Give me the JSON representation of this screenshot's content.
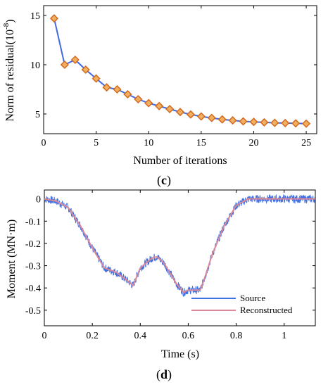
{
  "chart_data": [
    {
      "type": "line",
      "panel_label": "(c)",
      "panel_label_prefix": "(",
      "panel_label_letter": "c",
      "panel_label_suffix": ")",
      "xlabel": "Number of iterations",
      "ylabel": "Norm of residual(10",
      "ylabel_exponent": "-8",
      "ylabel_suffix": ")",
      "xlim": [
        0,
        26
      ],
      "ylim": [
        3,
        16
      ],
      "xticks": [
        0,
        5,
        10,
        15,
        20,
        25
      ],
      "yticks": [
        5,
        10,
        15
      ],
      "line_color": "#4169e1",
      "marker": "diamond",
      "marker_color": "#d2691e",
      "series": [
        {
          "x": [
            1,
            2,
            3,
            4,
            5,
            6,
            7,
            8,
            9,
            10,
            11,
            12,
            13,
            14,
            15,
            16,
            17,
            18,
            19,
            20,
            21,
            22,
            23,
            24,
            25
          ],
          "values": [
            14.7,
            10.0,
            10.5,
            9.5,
            8.6,
            7.7,
            7.5,
            7.0,
            6.5,
            6.1,
            5.8,
            5.5,
            5.2,
            4.95,
            4.75,
            4.6,
            4.45,
            4.35,
            4.25,
            4.2,
            4.15,
            4.1,
            4.08,
            4.05,
            4.02
          ]
        }
      ]
    },
    {
      "type": "line",
      "panel_label": "(d)",
      "panel_label_prefix": "(",
      "panel_label_letter": "d",
      "panel_label_suffix": ")",
      "xlabel": "Time (s)",
      "ylabel": "Moment  (MN·m)",
      "xlim": [
        0,
        1.13
      ],
      "ylim": [
        -0.57,
        0.04
      ],
      "xticks": [
        0,
        0.2,
        0.4,
        0.6,
        0.8,
        1
      ],
      "yticks": [
        0,
        -0.1,
        -0.2,
        -0.3,
        -0.4,
        -0.5
      ],
      "legend_position": "lower-right",
      "series": [
        {
          "name": "Source",
          "color": "#3f6fe0",
          "noise_amplitude": 0.018,
          "x": [
            0,
            0.05,
            0.1,
            0.15,
            0.2,
            0.25,
            0.3,
            0.35,
            0.37,
            0.4,
            0.45,
            0.47,
            0.5,
            0.55,
            0.58,
            0.6,
            0.62,
            0.65,
            0.67,
            0.7,
            0.75,
            0.8,
            0.85,
            0.9,
            0.95,
            1.0,
            1.05,
            1.1,
            1.13
          ],
          "values": [
            0.0,
            -0.01,
            -0.04,
            -0.12,
            -0.22,
            -0.31,
            -0.33,
            -0.37,
            -0.39,
            -0.31,
            -0.265,
            -0.26,
            -0.29,
            -0.38,
            -0.42,
            -0.41,
            -0.41,
            -0.41,
            -0.35,
            -0.25,
            -0.12,
            -0.03,
            0.0,
            0.0,
            0.0,
            0.0,
            0.0,
            0.0,
            0.0
          ]
        },
        {
          "name": "Reconstructed",
          "color": "#d9889a",
          "x": [
            0,
            0.05,
            0.1,
            0.15,
            0.2,
            0.25,
            0.3,
            0.35,
            0.37,
            0.4,
            0.45,
            0.47,
            0.5,
            0.55,
            0.58,
            0.6,
            0.62,
            0.65,
            0.67,
            0.7,
            0.75,
            0.8,
            0.85,
            0.9,
            0.95,
            1.0,
            1.05,
            1.1,
            1.13
          ],
          "values": [
            0.0,
            -0.01,
            -0.04,
            -0.12,
            -0.22,
            -0.31,
            -0.33,
            -0.37,
            -0.39,
            -0.31,
            -0.265,
            -0.26,
            -0.29,
            -0.38,
            -0.42,
            -0.41,
            -0.41,
            -0.41,
            -0.35,
            -0.25,
            -0.12,
            -0.03,
            0.0,
            0.0,
            0.0,
            0.0,
            0.0,
            0.0,
            0.0
          ]
        }
      ]
    }
  ]
}
